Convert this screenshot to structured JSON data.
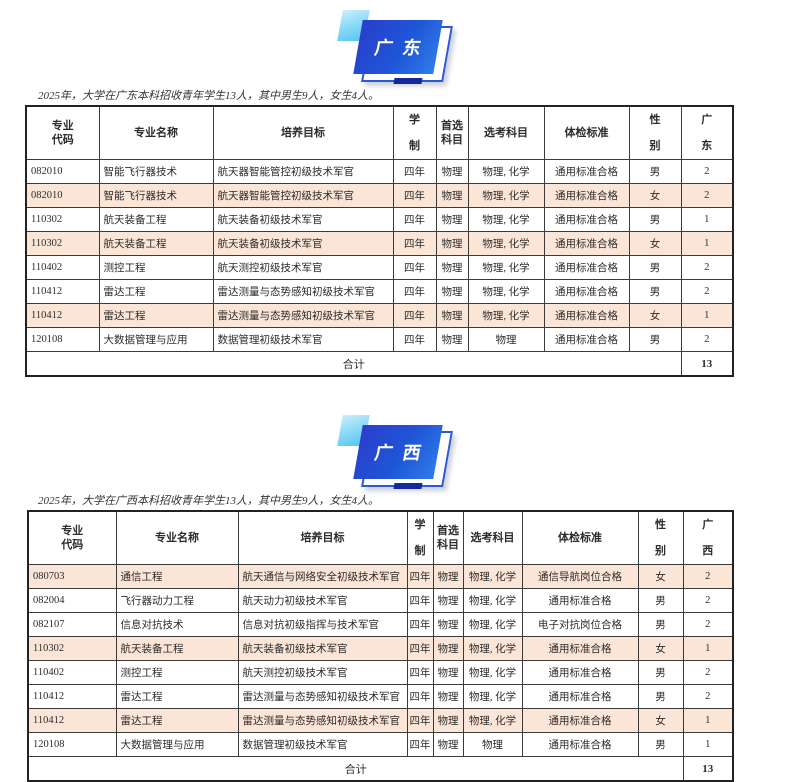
{
  "page": {
    "sections": [
      {
        "badge_label": "广东",
        "intro": "2025年，大学在广东本科招收青年学生13人，其中男生9人，女生4人。",
        "headers": {
          "code": "专业\n代码",
          "name": "专业名称",
          "goal": "培养目标",
          "years": "学\n制",
          "first": "首选\n科目",
          "subjects": "选考科目",
          "medical": "体检标准",
          "gender": "性\n别",
          "province": "广\n东"
        },
        "rows": [
          {
            "code": "082010",
            "name": "智能飞行器技术",
            "goal": "航天器智能管控初级技术军官",
            "years": "四年",
            "first": "物理",
            "subjects": "物理, 化学",
            "medical": "通用标准合格",
            "gender": "男",
            "count": "2",
            "highlight": false
          },
          {
            "code": "082010",
            "name": "智能飞行器技术",
            "goal": "航天器智能管控初级技术军官",
            "years": "四年",
            "first": "物理",
            "subjects": "物理, 化学",
            "medical": "通用标准合格",
            "gender": "女",
            "count": "2",
            "highlight": true
          },
          {
            "code": "110302",
            "name": "航天装备工程",
            "goal": "航天装备初级技术军官",
            "years": "四年",
            "first": "物理",
            "subjects": "物理, 化学",
            "medical": "通用标准合格",
            "gender": "男",
            "count": "1",
            "highlight": false
          },
          {
            "code": "110302",
            "name": "航天装备工程",
            "goal": "航天装备初级技术军官",
            "years": "四年",
            "first": "物理",
            "subjects": "物理, 化学",
            "medical": "通用标准合格",
            "gender": "女",
            "count": "1",
            "highlight": true
          },
          {
            "code": "110402",
            "name": "测控工程",
            "goal": "航天测控初级技术军官",
            "years": "四年",
            "first": "物理",
            "subjects": "物理, 化学",
            "medical": "通用标准合格",
            "gender": "男",
            "count": "2",
            "highlight": false
          },
          {
            "code": "110412",
            "name": "雷达工程",
            "goal": "雷达测量与态势感知初级技术军官",
            "years": "四年",
            "first": "物理",
            "subjects": "物理, 化学",
            "medical": "通用标准合格",
            "gender": "男",
            "count": "2",
            "highlight": false
          },
          {
            "code": "110412",
            "name": "雷达工程",
            "goal": "雷达测量与态势感知初级技术军官",
            "years": "四年",
            "first": "物理",
            "subjects": "物理, 化学",
            "medical": "通用标准合格",
            "gender": "女",
            "count": "1",
            "highlight": true
          },
          {
            "code": "120108",
            "name": "大数据管理与应用",
            "goal": "数据管理初级技术军官",
            "years": "四年",
            "first": "物理",
            "subjects": "物理",
            "medical": "通用标准合格",
            "gender": "男",
            "count": "2",
            "highlight": false
          }
        ],
        "total_label": "合计",
        "total_value": "13"
      },
      {
        "badge_label": "广西",
        "intro": "2025年，大学在广西本科招收青年学生13人，其中男生9人，女生4人。",
        "headers": {
          "code": "专业\n代码",
          "name": "专业名称",
          "goal": "培养目标",
          "years": "学\n制",
          "first": "首选\n科目",
          "subjects": "选考科目",
          "medical": "体检标准",
          "gender": "性\n别",
          "province": "广\n西"
        },
        "rows": [
          {
            "code": "080703",
            "name": "通信工程",
            "goal": "航天通信与网络安全初级技术军官",
            "years": "四年",
            "first": "物理",
            "subjects": "物理, 化学",
            "medical": "通信导航岗位合格",
            "gender": "女",
            "count": "2",
            "highlight": true
          },
          {
            "code": "082004",
            "name": "飞行器动力工程",
            "goal": "航天动力初级技术军官",
            "years": "四年",
            "first": "物理",
            "subjects": "物理, 化学",
            "medical": "通用标准合格",
            "gender": "男",
            "count": "2",
            "highlight": false
          },
          {
            "code": "082107",
            "name": "信息对抗技术",
            "goal": "信息对抗初级指挥与技术军官",
            "years": "四年",
            "first": "物理",
            "subjects": "物理, 化学",
            "medical": "电子对抗岗位合格",
            "gender": "男",
            "count": "2",
            "highlight": false
          },
          {
            "code": "110302",
            "name": "航天装备工程",
            "goal": "航天装备初级技术军官",
            "years": "四年",
            "first": "物理",
            "subjects": "物理, 化学",
            "medical": "通用标准合格",
            "gender": "女",
            "count": "1",
            "highlight": true
          },
          {
            "code": "110402",
            "name": "测控工程",
            "goal": "航天测控初级技术军官",
            "years": "四年",
            "first": "物理",
            "subjects": "物理, 化学",
            "medical": "通用标准合格",
            "gender": "男",
            "count": "2",
            "highlight": false
          },
          {
            "code": "110412",
            "name": "雷达工程",
            "goal": "雷达测量与态势感知初级技术军官",
            "years": "四年",
            "first": "物理",
            "subjects": "物理, 化学",
            "medical": "通用标准合格",
            "gender": "男",
            "count": "2",
            "highlight": false
          },
          {
            "code": "110412",
            "name": "雷达工程",
            "goal": "雷达测量与态势感知初级技术军官",
            "years": "四年",
            "first": "物理",
            "subjects": "物理, 化学",
            "medical": "通用标准合格",
            "gender": "女",
            "count": "1",
            "highlight": true
          },
          {
            "code": "120108",
            "name": "大数据管理与应用",
            "goal": "数据管理初级技术军官",
            "years": "四年",
            "first": "物理",
            "subjects": "物理",
            "medical": "通用标准合格",
            "gender": "男",
            "count": "1",
            "highlight": false
          }
        ],
        "total_label": "合计",
        "total_value": "13"
      }
    ],
    "colors": {
      "badge_blue_start": "#2a3ecd",
      "badge_blue_end": "#2f7ce9",
      "badge_cyan": "#54c3f2",
      "badge_navy": "#17289c",
      "highlight_row": "#fbe5d6"
    }
  }
}
